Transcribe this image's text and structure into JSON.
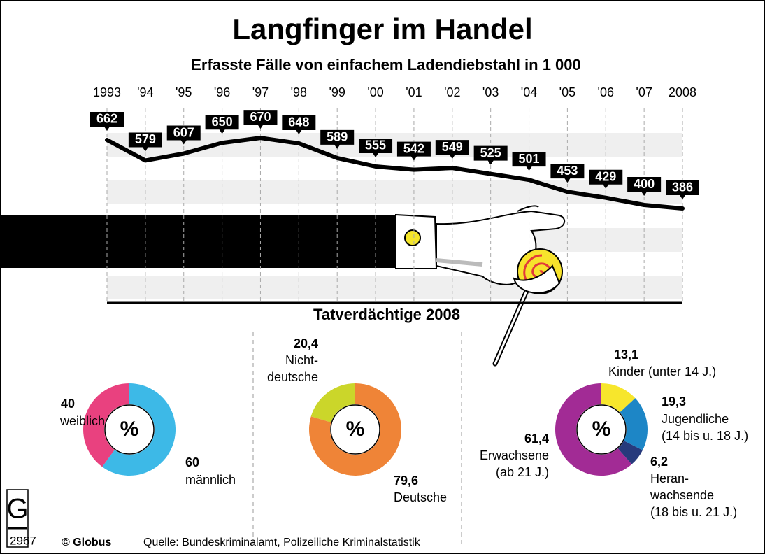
{
  "chart_data": [
    {
      "type": "line",
      "title": "Langfinger im Handel",
      "subtitle": "Erfasste Fälle von einfachem Ladendiebstahl in 1 000",
      "categories": [
        "1993",
        "'94",
        "'95",
        "'96",
        "'97",
        "'98",
        "'99",
        "'00",
        "'01",
        "'02",
        "'03",
        "'04",
        "'05",
        "'06",
        "'07",
        "2008"
      ],
      "values": [
        662,
        579,
        607,
        650,
        670,
        648,
        589,
        555,
        542,
        549,
        525,
        501,
        453,
        429,
        400,
        386
      ],
      "ylim": [
        0,
        800
      ],
      "color": "#000000"
    },
    {
      "type": "pie",
      "title": "Tatverdächtige 2008",
      "center_label": "%",
      "categories": [
        "männlich",
        "weiblich"
      ],
      "values": [
        60,
        40
      ],
      "value_labels": [
        "60",
        "40"
      ],
      "colors": [
        "#3db9e7",
        "#e9417f"
      ]
    },
    {
      "type": "pie",
      "center_label": "%",
      "categories": [
        "Deutsche",
        "Nicht-\ndeutsche"
      ],
      "values": [
        79.6,
        20.4
      ],
      "value_labels": [
        "79,6",
        "20,4"
      ],
      "colors": [
        "#ef8437",
        "#cbd62a"
      ]
    },
    {
      "type": "pie",
      "center_label": "%",
      "categories": [
        "Kinder (unter 14 J.)",
        "Jugendliche\n(14 bis u. 18 J.)",
        "Heran-\nwachsende\n(18 bis u. 21 J.)",
        "Erwachsene\n(ab 21 J.)"
      ],
      "values": [
        13.1,
        19.3,
        6.2,
        61.4
      ],
      "value_labels": [
        "13,1",
        "19,3",
        "6,2",
        "61,4"
      ],
      "colors": [
        "#f7e62c",
        "#1d86c6",
        "#273a7c",
        "#a22b95"
      ]
    }
  ],
  "footer": {
    "logo": "G",
    "number": "2967",
    "publisher": "© Globus",
    "source": "Quelle: Bundeskriminalamt, Polizeiliche Kriminalstatistik"
  }
}
